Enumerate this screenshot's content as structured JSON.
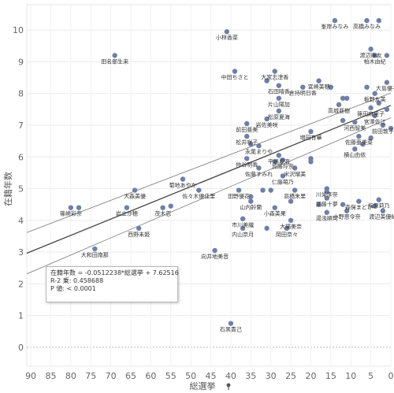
{
  "chart_data": {
    "type": "scatter",
    "xlabel": "総選挙",
    "xlabel_icon": "pin-icon",
    "ylabel": "在籍年数",
    "x_reversed": true,
    "xlim": [
      91,
      0
    ],
    "ylim": [
      -0.6,
      10.8
    ],
    "xticks": [
      90,
      85,
      80,
      75,
      70,
      65,
      60,
      55,
      50,
      45,
      40,
      35,
      30,
      25,
      20,
      15,
      10,
      5,
      0
    ],
    "yticks": [
      0,
      1,
      2,
      3,
      4,
      5,
      6,
      7,
      8,
      9,
      10
    ],
    "grid": true,
    "point_color": "#6f7fa6",
    "trend_color": "#444444",
    "band_color": "#777777",
    "zero_line_color": "#b8b8b8",
    "trend": {
      "slope": -0.0512238,
      "intercept": 7.62516
    },
    "stats": {
      "equation": "在籍年数 = -0.0512238*総選挙 + 7.62516",
      "r2": "R-2 乗: 0.458688",
      "p": "P 値: < 0.0001"
    },
    "points": [
      {
        "label": "峯岸みなみ",
        "x": 14,
        "y": 10.3
      },
      {
        "label": "高橋みなみ",
        "x": 6,
        "y": 10.3
      },
      {
        "label": "",
        "x": 3,
        "y": 10.3
      },
      {
        "label": "小林香菜",
        "x": 41,
        "y": 9.95
      },
      {
        "label": "渡辺麻友",
        "x": 5,
        "y": 9.4
      },
      {
        "label": "柏木由紀",
        "x": 4,
        "y": 9.2
      },
      {
        "label": "",
        "x": 1,
        "y": 9.2
      },
      {
        "label": "田名部生来",
        "x": 69,
        "y": 9.2
      },
      {
        "label": "中田ちさと",
        "x": 39,
        "y": 8.7
      },
      {
        "label": "大家志津香",
        "x": 29,
        "y": 8.7
      },
      {
        "label": "",
        "x": 31,
        "y": 8.4
      },
      {
        "label": "宮崎美穂",
        "x": 18,
        "y": 8.4
      },
      {
        "label": "大島優子",
        "x": 1,
        "y": 8.35
      },
      {
        "label": "石田晴香",
        "x": 28,
        "y": 8.25
      },
      {
        "label": "倉持明日香",
        "x": 22,
        "y": 8.2
      },
      {
        "label": "",
        "x": 6,
        "y": 8.2
      },
      {
        "label": "",
        "x": 15,
        "y": 8.2
      },
      {
        "label": "板野友美",
        "x": 4,
        "y": 8.0
      },
      {
        "label": "片山陽加",
        "x": 28,
        "y": 7.85
      },
      {
        "label": "",
        "x": 12,
        "y": 7.85
      },
      {
        "label": "",
        "x": 11,
        "y": 7.85
      },
      {
        "label": "高城亜樹",
        "x": 13,
        "y": 7.65
      },
      {
        "label": "",
        "x": 3,
        "y": 7.7
      },
      {
        "label": "松原夏海",
        "x": 28,
        "y": 7.45
      },
      {
        "label": "篠田麻里子",
        "x": 5,
        "y": 7.55
      },
      {
        "label": "",
        "x": 1,
        "y": 7.5
      },
      {
        "label": "岩佐美咲",
        "x": 31,
        "y": 7.2
      },
      {
        "label": "宮澤佐江",
        "x": 4,
        "y": 7.3
      },
      {
        "label": "前田亜美",
        "x": 36,
        "y": 7.05
      },
      {
        "label": "河西智美",
        "x": 9,
        "y": 7.1
      },
      {
        "label": "",
        "x": 12,
        "y": 7.15
      },
      {
        "label": "前田敦子",
        "x": 2,
        "y": 7.0
      },
      {
        "label": "",
        "x": 0,
        "y": 6.9
      },
      {
        "label": "増田有華",
        "x": 20,
        "y": 6.8
      },
      {
        "label": "佐藤亜美菜",
        "x": 8,
        "y": 6.65
      },
      {
        "label": "松井咲子",
        "x": 36,
        "y": 6.65
      },
      {
        "label": "",
        "x": 5,
        "y": 6.6
      },
      {
        "label": "永尾まりや",
        "x": 33,
        "y": 6.35
      },
      {
        "label": "",
        "x": 35,
        "y": 6.4
      },
      {
        "label": "",
        "x": 7,
        "y": 6.4
      },
      {
        "label": "横山由依",
        "x": 9,
        "y": 6.25
      },
      {
        "label": "平嶋夏海",
        "x": 28,
        "y": 6.05
      },
      {
        "label": "仲谷明香",
        "x": 36,
        "y": 5.95
      },
      {
        "label": "加藤玲奈",
        "x": 27,
        "y": 5.9
      },
      {
        "label": "",
        "x": 20,
        "y": 5.95
      },
      {
        "label": "",
        "x": 29,
        "y": 5.85
      },
      {
        "label": "佐藤すみれ",
        "x": 33,
        "y": 5.65
      },
      {
        "label": "米沢瑠美",
        "x": 24,
        "y": 5.65
      },
      {
        "label": "",
        "x": 20,
        "y": 5.85
      },
      {
        "label": "仁藤萌乃",
        "x": 27,
        "y": 5.4
      },
      {
        "label": "菊地あやか",
        "x": 52,
        "y": 5.3
      },
      {
        "label": "佐々木優佳里",
        "x": 48,
        "y": 4.95
      },
      {
        "label": "田野優花",
        "x": 38,
        "y": 4.95
      },
      {
        "label": "",
        "x": 32,
        "y": 4.95
      },
      {
        "label": "",
        "x": 30,
        "y": 4.95
      },
      {
        "label": "川栄李奈",
        "x": 16,
        "y": 5.0
      },
      {
        "label": "",
        "x": 16,
        "y": 4.9
      },
      {
        "label": "大森美優",
        "x": 64,
        "y": 4.95
      },
      {
        "label": "高橋朱里",
        "x": 24,
        "y": 4.95
      },
      {
        "label": "",
        "x": 35,
        "y": 4.75
      },
      {
        "label": "武藤十夢",
        "x": 16,
        "y": 4.7
      },
      {
        "label": "指原莉乃",
        "x": 3,
        "y": 4.65
      },
      {
        "label": "山内鈴蘭",
        "x": 35,
        "y": 4.6
      },
      {
        "label": "森保まどか",
        "x": 8,
        "y": 4.6
      },
      {
        "label": "",
        "x": 25,
        "y": 4.6
      },
      {
        "label": "",
        "x": 12,
        "y": 4.5
      },
      {
        "label": "小森美果",
        "x": 29,
        "y": 4.4
      },
      {
        "label": "",
        "x": 18,
        "y": 4.5
      },
      {
        "label": "篠崎彩奈",
        "x": 80,
        "y": 4.4
      },
      {
        "label": "",
        "x": 78,
        "y": 4.4
      },
      {
        "label": "岩立沙穂",
        "x": 66,
        "y": 4.4
      },
      {
        "label": "茂木忍",
        "x": 57,
        "y": 4.4
      },
      {
        "label": "",
        "x": 55,
        "y": 4.45
      },
      {
        "label": "",
        "x": 4,
        "y": 4.45
      },
      {
        "label": "小野恵令奈",
        "x": 11,
        "y": 4.3
      },
      {
        "label": "渡辺美優紀",
        "x": 2,
        "y": 4.3
      },
      {
        "label": "湯浅順司",
        "x": 16,
        "y": 4.25
      },
      {
        "label": "市川美織",
        "x": 37,
        "y": 4.05
      },
      {
        "label": "大場美奈",
        "x": 25,
        "y": 4.0
      },
      {
        "label": "西野未姫",
        "x": 63,
        "y": 3.75
      },
      {
        "label": "内山奈月",
        "x": 37,
        "y": 3.75
      },
      {
        "label": "岡田奈々",
        "x": 26,
        "y": 3.75
      },
      {
        "label": "",
        "x": 31,
        "y": 3.75
      },
      {
        "label": "大和田南那",
        "x": 74,
        "y": 3.1
      },
      {
        "label": "向井地美音",
        "x": 44,
        "y": 3.05
      },
      {
        "label": "石黒貴己",
        "x": 40,
        "y": 0.75
      }
    ]
  }
}
